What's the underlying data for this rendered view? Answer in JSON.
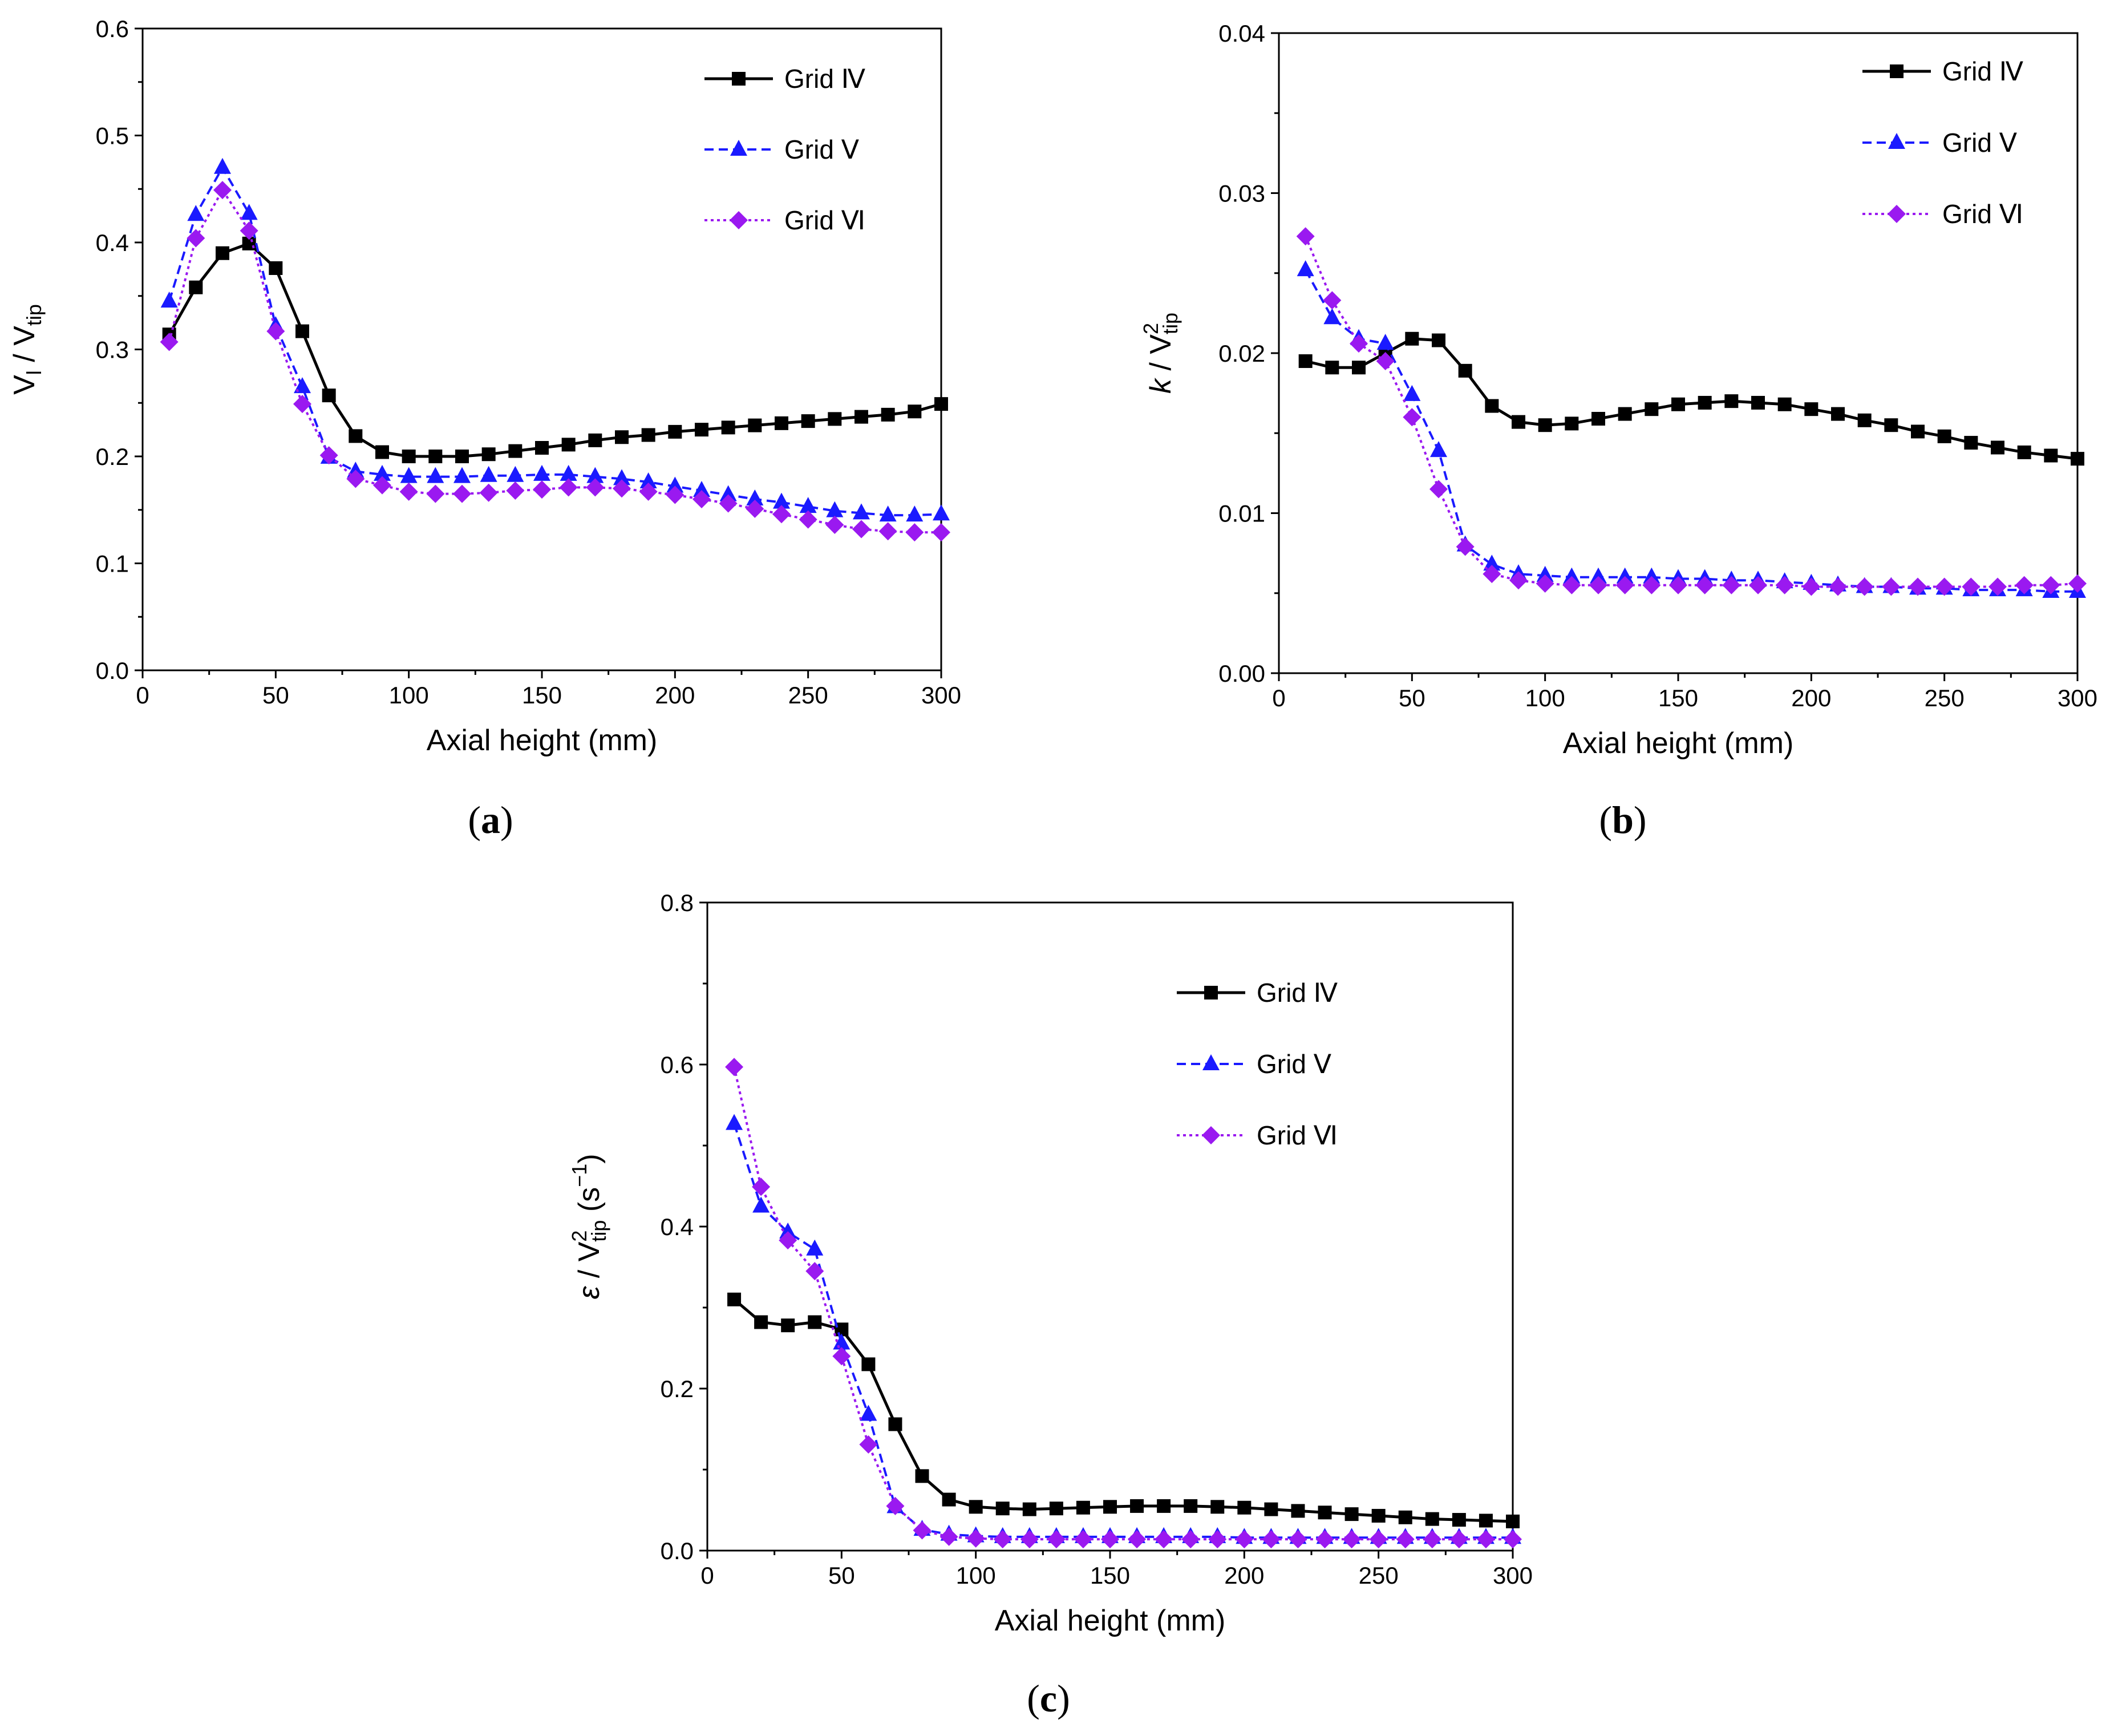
{
  "figure": {
    "panels": [
      "a",
      "b",
      "c"
    ]
  },
  "legend": {
    "s1": "Grid Ⅳ",
    "s2": "Grid Ⅴ",
    "s3": "Grid Ⅵ"
  },
  "colors": {
    "s1": "#000000",
    "s2": "#1a1aff",
    "s3": "#9a19f0"
  },
  "chart_data": [
    {
      "id": "a",
      "panel_label": "(a)",
      "type": "line",
      "title": "",
      "xlabel": "Axial height (mm)",
      "ylabel": "Vl / Vtip",
      "ylabel_parts": {
        "main": "V",
        "sub1": "l",
        "slash": " / V",
        "sub2": "tip"
      },
      "xlim": [
        0,
        300
      ],
      "ylim": [
        0,
        0.6
      ],
      "xticks": [
        "0",
        "50",
        "100",
        "150",
        "200",
        "250",
        "300"
      ],
      "yticks": [
        "0.0",
        "0.1",
        "0.2",
        "0.3",
        "0.4",
        "0.5",
        "0.6"
      ],
      "legend_position": "top-right",
      "x": [
        10,
        20,
        30,
        40,
        50,
        60,
        70,
        80,
        90,
        100,
        110,
        120,
        130,
        140,
        150,
        160,
        170,
        180,
        190,
        200,
        210,
        220,
        230,
        240,
        250,
        260,
        270,
        280,
        290,
        300
      ],
      "series": [
        {
          "name": "Grid Ⅳ",
          "marker": "square",
          "line": "solid",
          "values": [
            0.314,
            0.358,
            0.39,
            0.399,
            0.376,
            0.317,
            0.257,
            0.219,
            0.204,
            0.2,
            0.2,
            0.2,
            0.202,
            0.205,
            0.208,
            0.211,
            0.215,
            0.218,
            0.22,
            0.223,
            0.225,
            0.227,
            0.229,
            0.231,
            0.233,
            0.235,
            0.237,
            0.239,
            0.242,
            0.249
          ]
        },
        {
          "name": "Grid Ⅴ",
          "marker": "triangle",
          "line": "dashed",
          "values": [
            0.345,
            0.426,
            0.47,
            0.427,
            0.322,
            0.265,
            0.199,
            0.186,
            0.183,
            0.181,
            0.181,
            0.181,
            0.182,
            0.182,
            0.183,
            0.183,
            0.181,
            0.179,
            0.176,
            0.172,
            0.168,
            0.164,
            0.16,
            0.157,
            0.153,
            0.149,
            0.147,
            0.145,
            0.145,
            0.146
          ]
        },
        {
          "name": "Grid Ⅵ",
          "marker": "diamond",
          "line": "dotted",
          "values": [
            0.307,
            0.404,
            0.449,
            0.411,
            0.317,
            0.249,
            0.201,
            0.179,
            0.173,
            0.167,
            0.165,
            0.165,
            0.166,
            0.168,
            0.169,
            0.171,
            0.171,
            0.17,
            0.167,
            0.164,
            0.16,
            0.156,
            0.151,
            0.146,
            0.141,
            0.136,
            0.132,
            0.13,
            0.129,
            0.129
          ]
        }
      ]
    },
    {
      "id": "b",
      "panel_label": "(b)",
      "type": "line",
      "title": "",
      "xlabel": "Axial height (mm)",
      "ylabel": "k / V2tip",
      "ylabel_parts": {
        "main": "k",
        "slash": " / V",
        "sup": "2",
        "sub": "tip"
      },
      "xlim": [
        0,
        300
      ],
      "ylim": [
        0,
        0.04
      ],
      "xticks": [
        "0",
        "50",
        "100",
        "150",
        "200",
        "250",
        "300"
      ],
      "yticks": [
        "0.00",
        "0.01",
        "0.02",
        "0.03",
        "0.04"
      ],
      "legend_position": "top-right",
      "x": [
        10,
        20,
        30,
        40,
        50,
        60,
        70,
        80,
        90,
        100,
        110,
        120,
        130,
        140,
        150,
        160,
        170,
        180,
        190,
        200,
        210,
        220,
        230,
        240,
        250,
        260,
        270,
        280,
        290,
        300
      ],
      "series": [
        {
          "name": "Grid Ⅳ",
          "marker": "square",
          "line": "solid",
          "values": [
            0.0195,
            0.0191,
            0.0191,
            0.02,
            0.0209,
            0.0208,
            0.0189,
            0.0167,
            0.0157,
            0.0155,
            0.0156,
            0.0159,
            0.0162,
            0.0165,
            0.0168,
            0.0169,
            0.017,
            0.0169,
            0.0168,
            0.0165,
            0.0162,
            0.0158,
            0.0155,
            0.0151,
            0.0148,
            0.0144,
            0.0141,
            0.0138,
            0.0136,
            0.0134
          ]
        },
        {
          "name": "Grid Ⅴ",
          "marker": "triangle",
          "line": "dashed",
          "values": [
            0.0252,
            0.0222,
            0.0209,
            0.0206,
            0.0174,
            0.0139,
            0.008,
            0.0068,
            0.0062,
            0.0061,
            0.006,
            0.006,
            0.006,
            0.006,
            0.0059,
            0.0059,
            0.0058,
            0.0058,
            0.0057,
            0.0056,
            0.0055,
            0.0054,
            0.0054,
            0.0053,
            0.0053,
            0.0052,
            0.0052,
            0.0052,
            0.0051,
            0.0051
          ]
        },
        {
          "name": "Grid Ⅵ",
          "marker": "diamond",
          "line": "dotted",
          "values": [
            0.0273,
            0.0233,
            0.0206,
            0.0195,
            0.016,
            0.0115,
            0.0079,
            0.0062,
            0.0058,
            0.0056,
            0.0055,
            0.0055,
            0.0055,
            0.0055,
            0.0055,
            0.0055,
            0.0055,
            0.0055,
            0.0055,
            0.0054,
            0.0054,
            0.0054,
            0.0054,
            0.0054,
            0.0054,
            0.0054,
            0.0054,
            0.0055,
            0.0055,
            0.0056
          ]
        }
      ]
    },
    {
      "id": "c",
      "panel_label": "(c)",
      "type": "line",
      "title": "",
      "xlabel": "Axial height (mm)",
      "ylabel": "ε / V2tip (s−1)",
      "ylabel_parts": {
        "main": "ε",
        "slash": " / V",
        "sup": "2",
        "sub": "tip",
        "unit": " (s",
        "unit_sup": "−1",
        "unit_end": ")"
      },
      "xlim": [
        0,
        300
      ],
      "ylim": [
        0,
        0.8
      ],
      "xticks": [
        "0",
        "50",
        "100",
        "150",
        "200",
        "250",
        "300"
      ],
      "yticks": [
        "0.0",
        "0.2",
        "0.4",
        "0.6",
        "0.8"
      ],
      "legend_position": "top-right",
      "x": [
        10,
        20,
        30,
        40,
        50,
        60,
        70,
        80,
        90,
        100,
        110,
        120,
        130,
        140,
        150,
        160,
        170,
        180,
        190,
        200,
        210,
        220,
        230,
        240,
        250,
        260,
        270,
        280,
        290,
        300
      ],
      "series": [
        {
          "name": "Grid Ⅳ",
          "marker": "square",
          "line": "solid",
          "values": [
            0.31,
            0.282,
            0.278,
            0.282,
            0.273,
            0.23,
            0.156,
            0.092,
            0.063,
            0.054,
            0.052,
            0.051,
            0.052,
            0.053,
            0.054,
            0.055,
            0.055,
            0.055,
            0.054,
            0.053,
            0.051,
            0.049,
            0.047,
            0.045,
            0.043,
            0.041,
            0.039,
            0.038,
            0.037,
            0.036
          ]
        },
        {
          "name": "Grid Ⅴ",
          "marker": "triangle",
          "line": "dashed",
          "values": [
            0.527,
            0.425,
            0.393,
            0.372,
            0.256,
            0.168,
            0.054,
            0.026,
            0.02,
            0.018,
            0.017,
            0.017,
            0.017,
            0.017,
            0.017,
            0.017,
            0.017,
            0.017,
            0.017,
            0.016,
            0.016,
            0.016,
            0.016,
            0.016,
            0.016,
            0.016,
            0.016,
            0.016,
            0.016,
            0.016
          ]
        },
        {
          "name": "Grid Ⅵ",
          "marker": "diamond",
          "line": "dotted",
          "values": [
            0.597,
            0.449,
            0.383,
            0.345,
            0.24,
            0.131,
            0.055,
            0.025,
            0.017,
            0.015,
            0.014,
            0.014,
            0.014,
            0.014,
            0.014,
            0.014,
            0.014,
            0.014,
            0.014,
            0.014,
            0.014,
            0.014,
            0.014,
            0.014,
            0.014,
            0.014,
            0.014,
            0.014,
            0.014,
            0.014
          ]
        }
      ]
    }
  ]
}
